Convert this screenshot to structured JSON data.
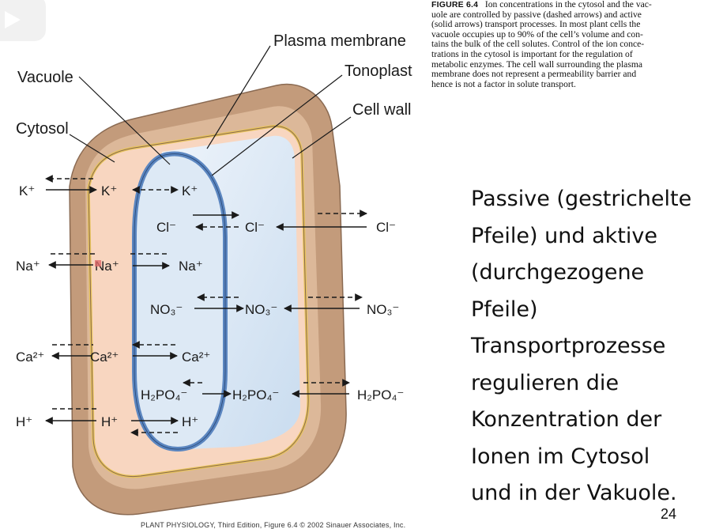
{
  "caption": {
    "figure_label": "FIGURE 6.4",
    "lines": [
      "Ion concentrations in the cytosol and the vac-",
      "uole are controlled by passive (dashed arrows) and active",
      "(solid arrows) transport processes. In most plant cells the",
      "vacuole occupies up to 90% of the cell’s volume and con-",
      "tains the bulk of the cell solutes. Control of the ion conce-",
      "trations in the cytosol is important for the regulation of",
      "metabolic enzymes. The cell wall surrounding the plasma",
      "membrane does not represent a permeability barrier and",
      "hence is not a factor in solute transport."
    ]
  },
  "labels": {
    "plasma_membrane": "Plasma membrane",
    "tonoplast": "Tonoplast",
    "vacuole": "Vacuole",
    "cytosol": "Cytosol",
    "cell_wall": "Cell wall"
  },
  "ions": {
    "k_out": "K⁺",
    "k_cyt": "K⁺",
    "k_vac": "K⁺",
    "cl_vac": "Cl⁻",
    "cl_cyt": "Cl⁻",
    "cl_out": "Cl⁻",
    "na_out": "Na⁺",
    "na_cyt": "Na⁺",
    "na_vac": "Na⁺",
    "no3_vac": "NO₃⁻",
    "no3_cyt": "NO₃⁻",
    "no3_out": "NO₃⁻",
    "ca_out": "Ca²⁺",
    "ca_cyt": "Ca²⁺",
    "ca_vac": "Ca²⁺",
    "h2po4_vac": "H₂PO₄⁻",
    "h2po4_cyt": "H₂PO₄⁻",
    "h2po4_out": "H₂PO₄⁻",
    "h_out": "H⁺",
    "h_cyt": "H⁺",
    "h_vac": "H⁺"
  },
  "side_text": [
    "Passive (gestrichelte",
    "Pfeile) und aktive",
    "(durchgezogene",
    "Pfeile)",
    "Transportprozesse",
    "regulieren die",
    "Konzentration der",
    "Ionen im Cytosol",
    "und in der Vakuole."
  ],
  "page_number": "24",
  "credit": "PLANT PHYSIOLOGY, Third Edition, Figure 6.4 © 2002 Sinauer Associates, Inc.",
  "colors": {
    "cell_wall": "#c9a385",
    "cytosol": "#f8d6c0",
    "vacuole": "#d8e6f4",
    "tonoplast": "#5b86c0",
    "membrane_yellow": "#e8c45a"
  }
}
